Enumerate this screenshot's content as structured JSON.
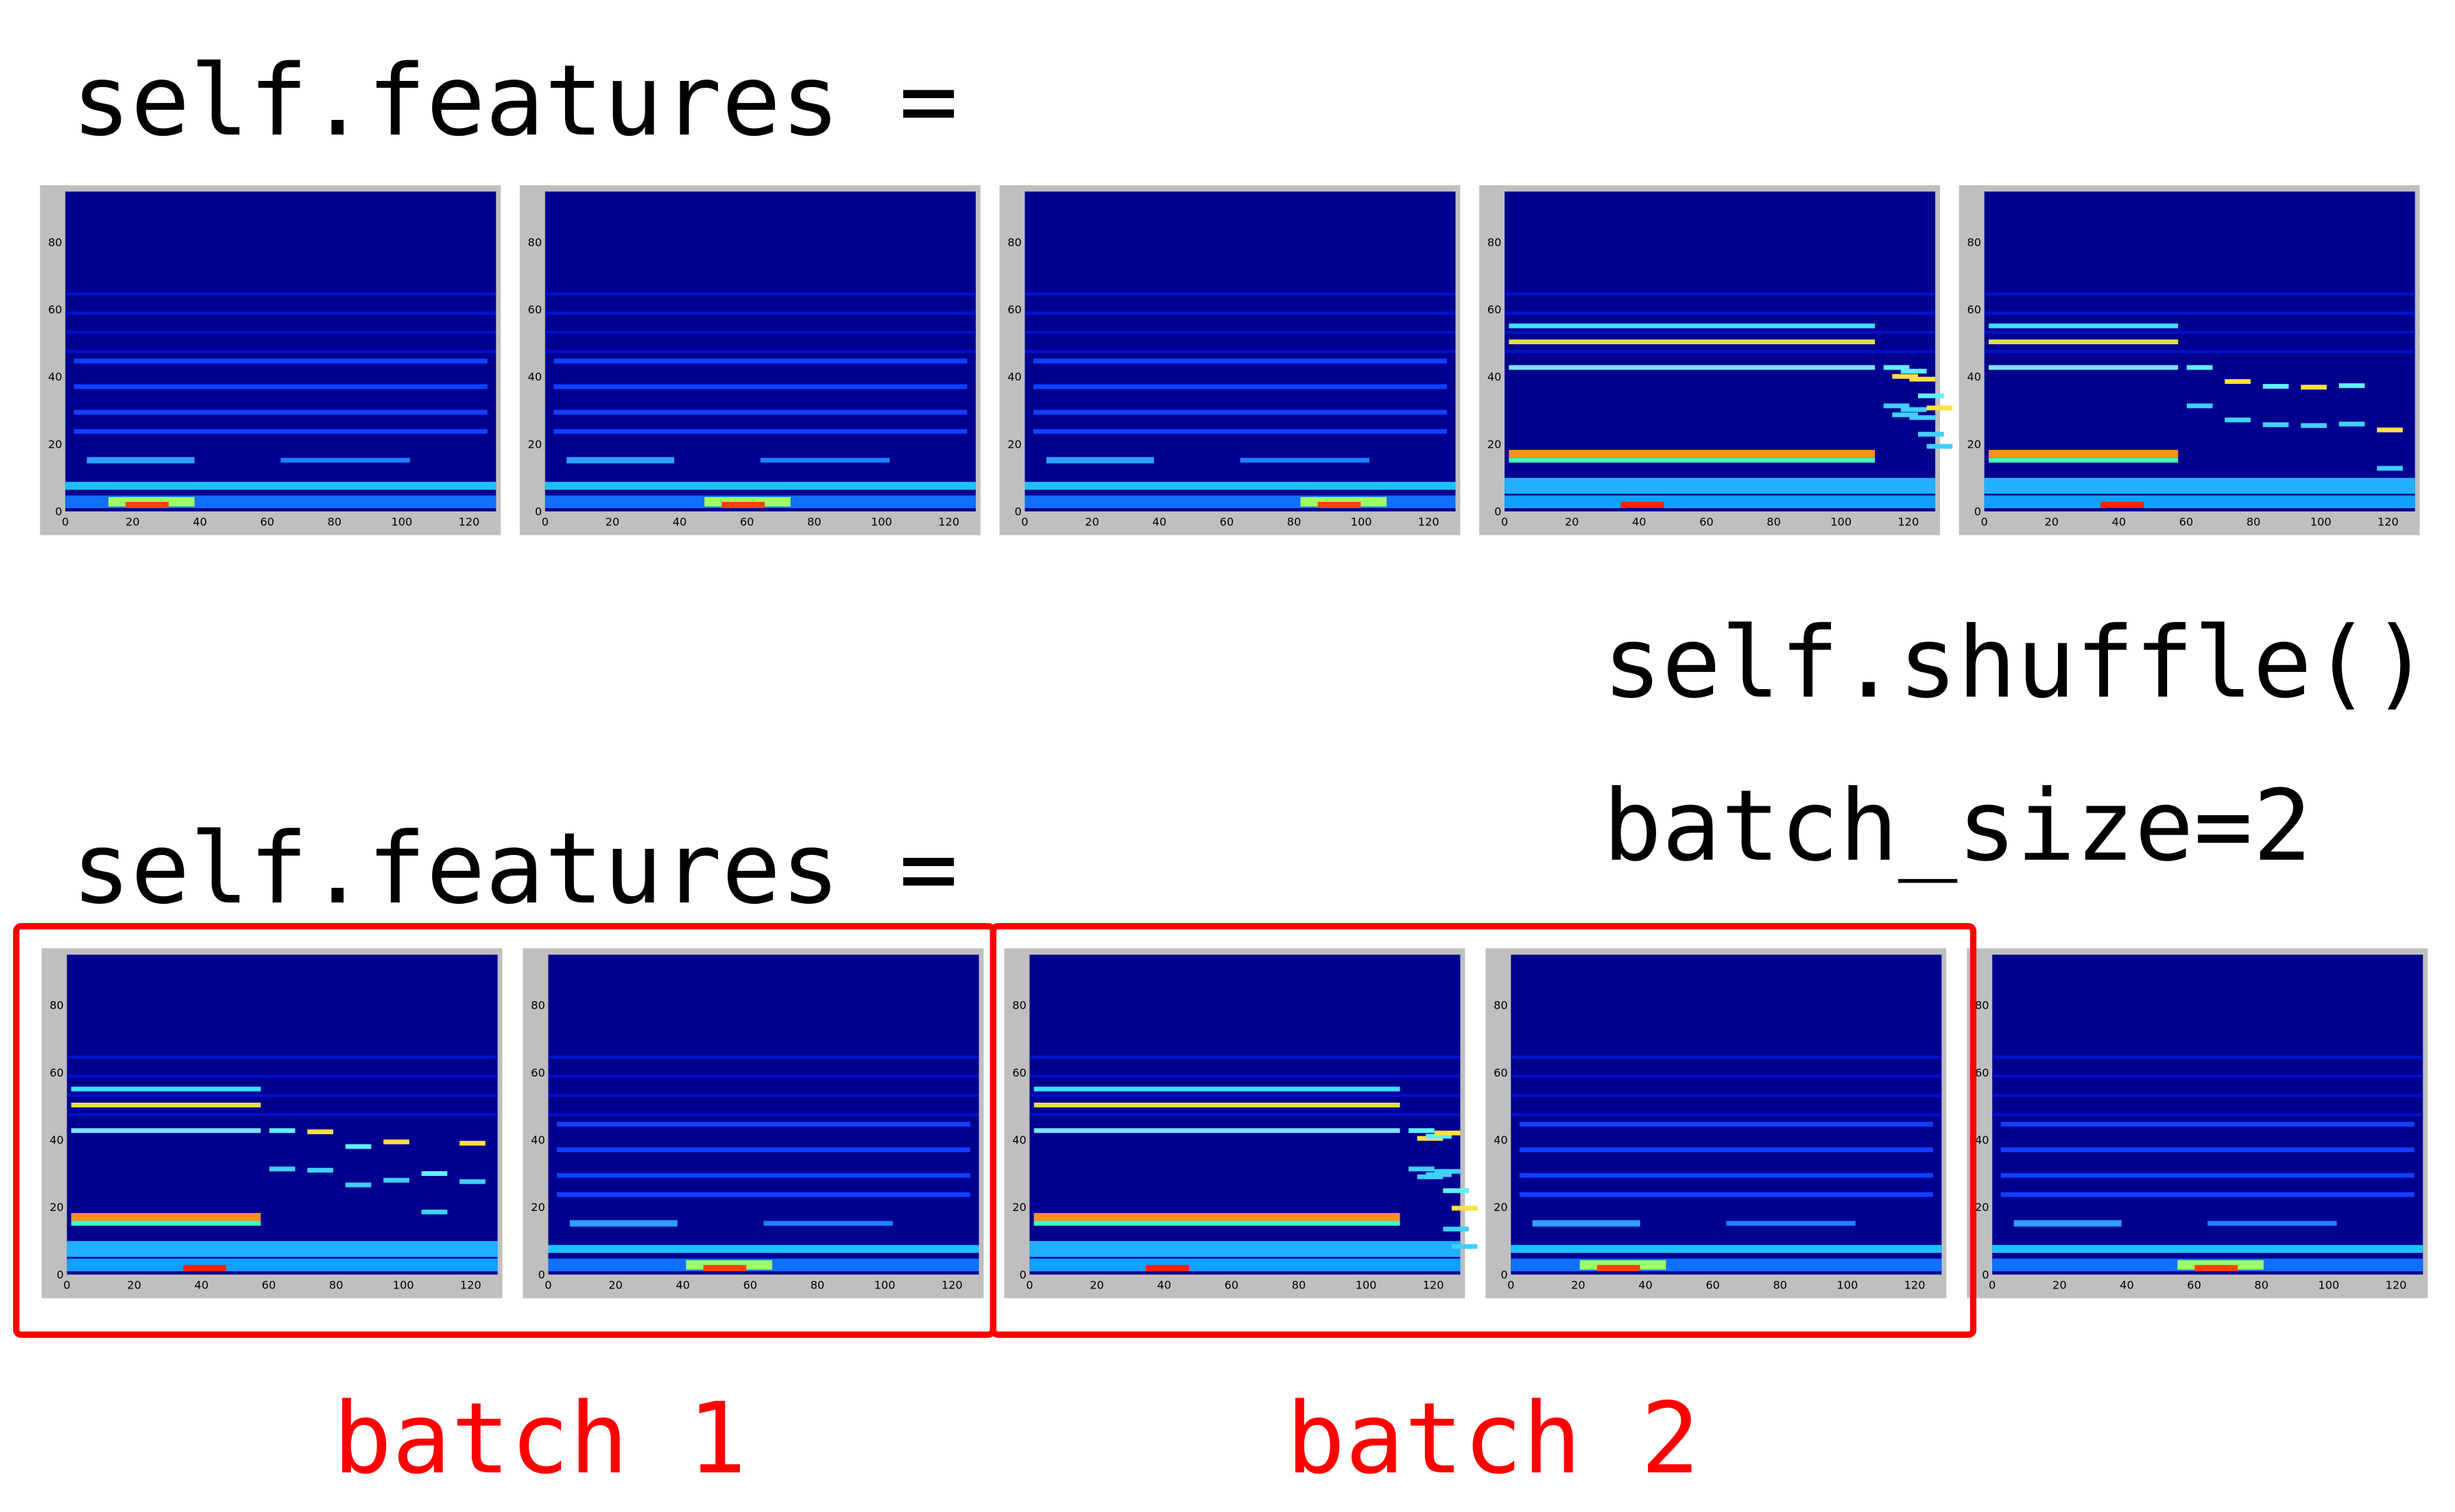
{
  "rows": [
    {
      "label": "self.features ="
    },
    {
      "label": "self.features ="
    }
  ],
  "shuffle": "self.shuffle()",
  "batch_size": "batch_size=2",
  "batches": [
    "batch 1",
    "batch 2"
  ],
  "spectrogram_axes": {
    "xticks": [
      0,
      20,
      40,
      60,
      80,
      100,
      120
    ],
    "yticks": [
      0,
      20,
      40,
      60,
      80
    ]
  }
}
